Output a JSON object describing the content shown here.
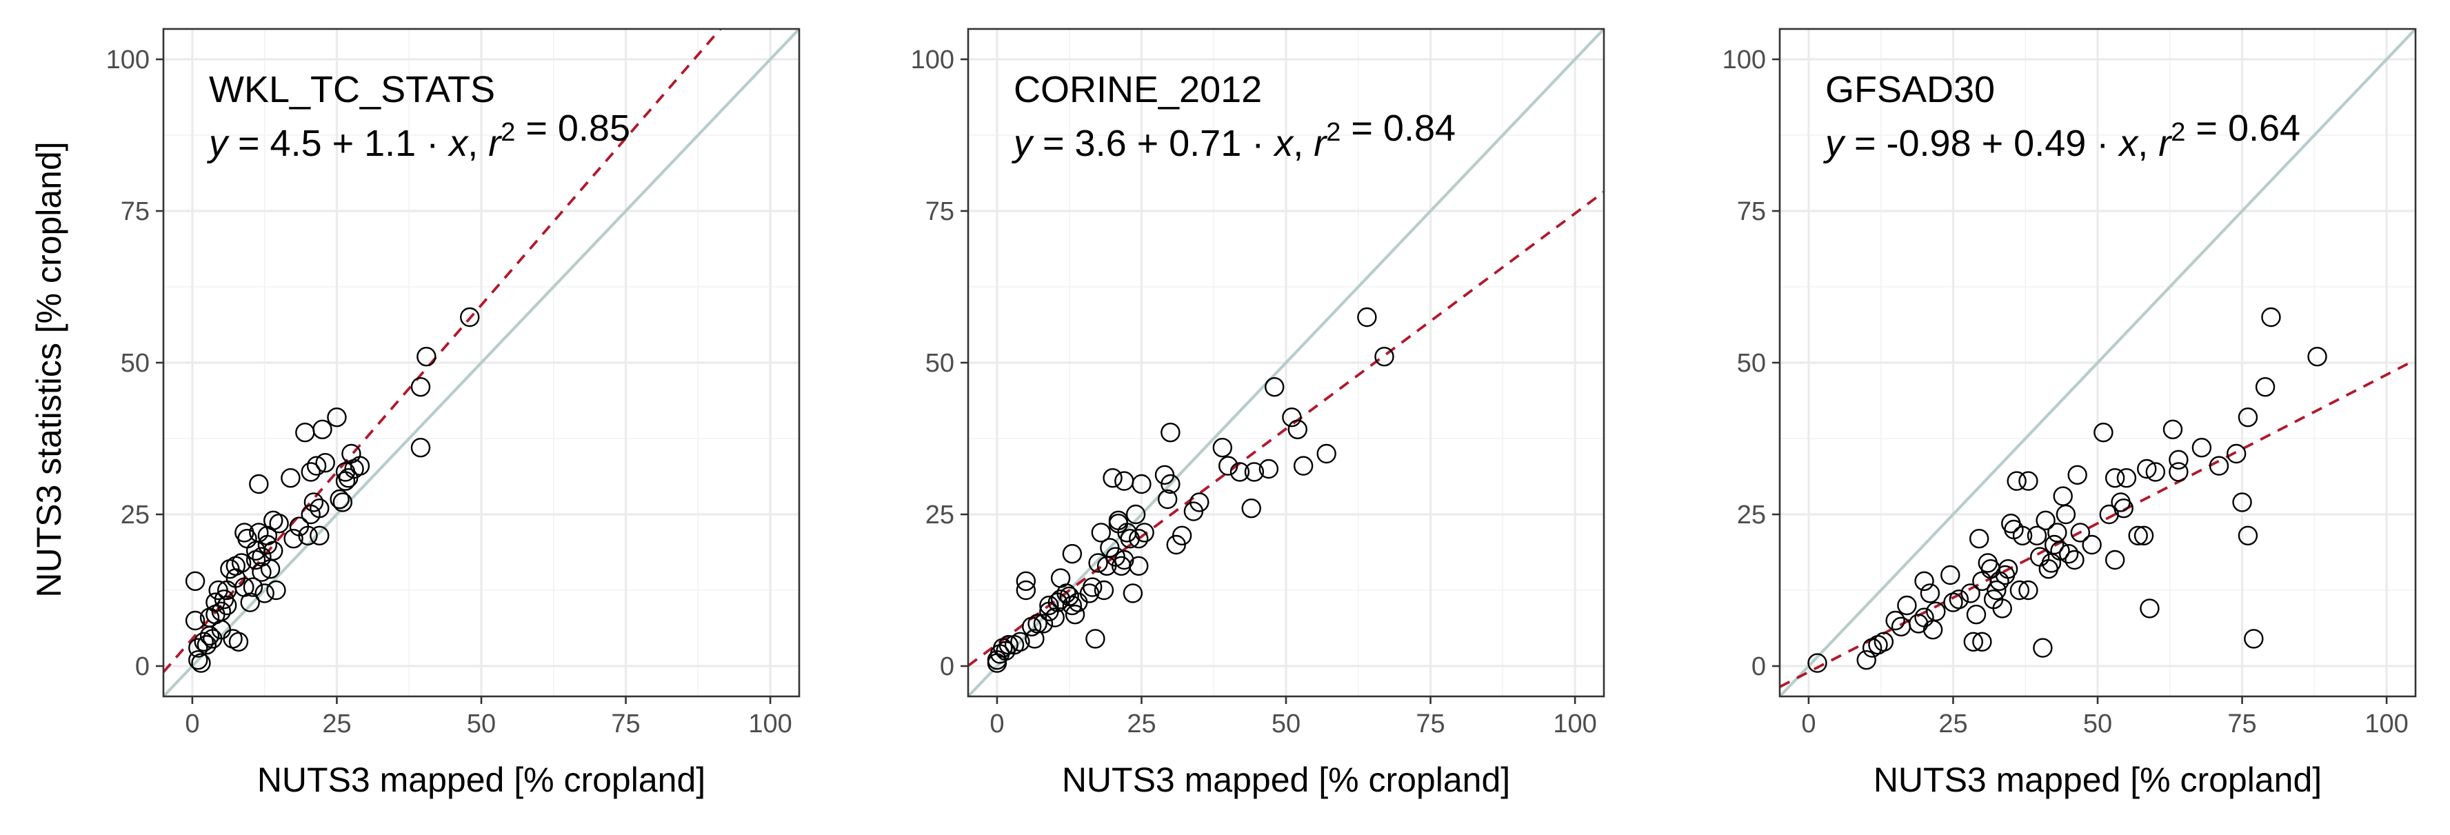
{
  "figure": {
    "ylabel": "NUTS3 statistics [% cropland]",
    "xlabel": "NUTS3 mapped [% cropland]"
  },
  "chart_data": [
    {
      "type": "scatter",
      "title": "WKL_TC_STATS",
      "equation": {
        "intercept": "4.5",
        "slope": "1.1",
        "r2": "0.85"
      },
      "fit": {
        "intercept": 4.5,
        "slope": 1.1,
        "color": "#b2182b",
        "style": "dashed"
      },
      "identity_line": {
        "color": "#b7cdcb"
      },
      "xlabel": "NUTS3 mapped [% cropland]",
      "ylabel": "NUTS3 statistics [% cropland]",
      "xlim": [
        -5,
        105
      ],
      "ylim": [
        -5,
        105
      ],
      "xticks": [
        0,
        25,
        50,
        75,
        100
      ],
      "yticks": [
        0,
        25,
        50,
        75,
        100
      ],
      "points": [
        [
          0.5,
          14
        ],
        [
          0.5,
          7.5
        ],
        [
          1,
          3
        ],
        [
          1,
          1
        ],
        [
          1.5,
          0.5
        ],
        [
          2,
          4
        ],
        [
          2.5,
          3.5
        ],
        [
          3,
          5
        ],
        [
          3,
          8
        ],
        [
          3.5,
          4.5
        ],
        [
          4,
          10.5
        ],
        [
          4,
          8.5
        ],
        [
          4.5,
          12.5
        ],
        [
          5,
          9
        ],
        [
          5,
          6
        ],
        [
          5.5,
          11
        ],
        [
          6,
          12.5
        ],
        [
          6,
          10
        ],
        [
          6.5,
          16
        ],
        [
          7,
          4.5
        ],
        [
          7.5,
          16.5
        ],
        [
          7.5,
          14.5
        ],
        [
          8,
          4
        ],
        [
          8.5,
          17
        ],
        [
          9,
          22
        ],
        [
          9,
          13
        ],
        [
          9.5,
          21
        ],
        [
          10,
          10.5
        ],
        [
          10.5,
          13
        ],
        [
          11,
          17.5
        ],
        [
          11,
          19
        ],
        [
          11.5,
          30
        ],
        [
          11.5,
          22
        ],
        [
          12,
          15.5
        ],
        [
          12,
          18
        ],
        [
          12.5,
          12
        ],
        [
          13,
          21.5
        ],
        [
          13,
          20
        ],
        [
          13.5,
          16
        ],
        [
          14,
          19
        ],
        [
          14,
          24
        ],
        [
          14.5,
          12.5
        ],
        [
          15,
          23.5
        ],
        [
          17,
          31
        ],
        [
          17.5,
          21
        ],
        [
          18.5,
          23
        ],
        [
          19.5,
          38.5
        ],
        [
          20,
          21.5
        ],
        [
          20.5,
          25
        ],
        [
          20.5,
          32
        ],
        [
          21,
          27
        ],
        [
          21.5,
          33
        ],
        [
          22,
          21.5
        ],
        [
          22,
          26
        ],
        [
          22.5,
          39
        ],
        [
          23,
          33.5
        ],
        [
          25,
          41
        ],
        [
          25.5,
          27.5
        ],
        [
          26,
          27
        ],
        [
          26.5,
          30.5
        ],
        [
          26.5,
          32
        ],
        [
          27,
          31
        ],
        [
          27.5,
          35
        ],
        [
          28,
          32.5
        ],
        [
          29,
          33
        ],
        [
          39.5,
          36
        ],
        [
          39.5,
          46
        ],
        [
          40.5,
          51
        ],
        [
          48,
          57.5
        ]
      ]
    },
    {
      "type": "scatter",
      "title": "CORINE_2012",
      "equation": {
        "intercept": "3.6",
        "slope": "0.71",
        "r2": "0.84"
      },
      "fit": {
        "intercept": 3.6,
        "slope": 0.71,
        "color": "#b2182b",
        "style": "dashed"
      },
      "identity_line": {
        "color": "#b7cdcb"
      },
      "xlabel": "NUTS3 mapped [% cropland]",
      "ylabel": "",
      "xlim": [
        -5,
        105
      ],
      "ylim": [
        -5,
        105
      ],
      "xticks": [
        0,
        25,
        50,
        75,
        100
      ],
      "yticks": [
        0,
        25,
        50,
        75,
        100
      ],
      "points": [
        [
          0,
          0.5
        ],
        [
          0,
          1
        ],
        [
          0.5,
          2
        ],
        [
          1,
          3
        ],
        [
          1.5,
          2.5
        ],
        [
          2,
          3.5
        ],
        [
          3,
          3.5
        ],
        [
          4,
          4
        ],
        [
          5,
          14
        ],
        [
          5,
          12.5
        ],
        [
          6,
          6.5
        ],
        [
          6.5,
          4.5
        ],
        [
          7,
          7
        ],
        [
          8,
          7
        ],
        [
          9,
          9
        ],
        [
          9,
          10
        ],
        [
          10,
          8
        ],
        [
          10.5,
          10.5
        ],
        [
          11,
          11
        ],
        [
          11,
          14.5
        ],
        [
          12,
          12
        ],
        [
          12.5,
          11.5
        ],
        [
          13,
          18.5
        ],
        [
          13,
          10
        ],
        [
          13.5,
          8.5
        ],
        [
          14,
          10.5
        ],
        [
          16,
          12
        ],
        [
          16.5,
          13
        ],
        [
          17,
          4.5
        ],
        [
          17.5,
          17
        ],
        [
          18,
          22
        ],
        [
          18.5,
          12.5
        ],
        [
          19,
          16.5
        ],
        [
          19.5,
          19.5
        ],
        [
          20,
          31
        ],
        [
          20.5,
          18
        ],
        [
          21,
          23.5
        ],
        [
          21,
          24
        ],
        [
          21.5,
          16.5
        ],
        [
          22,
          17.5
        ],
        [
          22,
          30.5
        ],
        [
          22.5,
          22
        ],
        [
          23,
          21
        ],
        [
          23.5,
          12
        ],
        [
          24,
          25
        ],
        [
          24.5,
          21
        ],
        [
          24.5,
          16.5
        ],
        [
          25,
          30
        ],
        [
          25.5,
          22
        ],
        [
          29,
          31.5
        ],
        [
          29.5,
          27.5
        ],
        [
          30,
          30
        ],
        [
          30,
          38.5
        ],
        [
          31,
          20
        ],
        [
          32,
          21.5
        ],
        [
          34,
          25.5
        ],
        [
          35,
          27
        ],
        [
          39,
          36
        ],
        [
          40,
          33
        ],
        [
          42,
          32
        ],
        [
          44,
          26
        ],
        [
          44.5,
          32
        ],
        [
          47,
          32.5
        ],
        [
          48,
          46
        ],
        [
          51,
          41
        ],
        [
          52,
          39
        ],
        [
          53,
          33
        ],
        [
          57,
          35
        ],
        [
          64,
          57.5
        ],
        [
          67,
          51
        ]
      ]
    },
    {
      "type": "scatter",
      "title": "GFSAD30",
      "equation": {
        "intercept": "-0.98",
        "slope": "0.49",
        "r2": "0.64"
      },
      "fit": {
        "intercept": -0.98,
        "slope": 0.49,
        "color": "#b2182b",
        "style": "dashed"
      },
      "identity_line": {
        "color": "#b7cdcb"
      },
      "xlabel": "NUTS3 mapped [% cropland]",
      "ylabel": "",
      "xlim": [
        -5,
        105
      ],
      "ylim": [
        -5,
        105
      ],
      "xticks": [
        0,
        25,
        50,
        75,
        100
      ],
      "yticks": [
        0,
        25,
        50,
        75,
        100
      ],
      "points": [
        [
          1.5,
          0.5
        ],
        [
          10,
          1
        ],
        [
          11,
          3
        ],
        [
          12,
          3.5
        ],
        [
          13,
          4
        ],
        [
          15,
          7.5
        ],
        [
          16,
          6.5
        ],
        [
          17,
          10
        ],
        [
          19,
          7
        ],
        [
          20,
          8
        ],
        [
          20,
          14
        ],
        [
          21,
          12
        ],
        [
          21.5,
          6
        ],
        [
          22,
          9
        ],
        [
          24.5,
          15
        ],
        [
          25,
          10.5
        ],
        [
          26,
          11
        ],
        [
          28,
          12
        ],
        [
          28.5,
          4
        ],
        [
          29,
          8.5
        ],
        [
          29.5,
          21
        ],
        [
          30,
          14
        ],
        [
          30,
          4
        ],
        [
          31,
          17
        ],
        [
          31.5,
          16
        ],
        [
          32,
          11
        ],
        [
          32.5,
          12.5
        ],
        [
          33,
          14
        ],
        [
          33.5,
          9.5
        ],
        [
          34,
          15
        ],
        [
          34.5,
          16
        ],
        [
          35,
          23.5
        ],
        [
          35.5,
          22.5
        ],
        [
          36,
          30.5
        ],
        [
          36.5,
          12.5
        ],
        [
          37,
          21.5
        ],
        [
          38,
          30.5
        ],
        [
          38,
          12.5
        ],
        [
          39.5,
          21.5
        ],
        [
          40,
          18
        ],
        [
          40.5,
          3
        ],
        [
          41,
          24
        ],
        [
          41.5,
          16
        ],
        [
          42,
          17
        ],
        [
          42.5,
          20
        ],
        [
          43,
          22
        ],
        [
          43.5,
          19
        ],
        [
          44,
          28
        ],
        [
          44.5,
          25
        ],
        [
          45,
          18.5
        ],
        [
          46,
          17.5
        ],
        [
          46.5,
          31.5
        ],
        [
          47,
          22
        ],
        [
          49,
          20
        ],
        [
          51,
          38.5
        ],
        [
          52,
          25
        ],
        [
          53,
          31
        ],
        [
          53,
          17.5
        ],
        [
          54,
          27
        ],
        [
          54.5,
          26
        ],
        [
          55,
          31
        ],
        [
          57,
          21.5
        ],
        [
          58,
          21.5
        ],
        [
          58.5,
          32.5
        ],
        [
          59,
          9.5
        ],
        [
          60,
          32
        ],
        [
          63,
          39
        ],
        [
          64,
          34
        ],
        [
          64,
          32
        ],
        [
          68,
          36
        ],
        [
          71,
          33
        ],
        [
          74,
          35
        ],
        [
          75,
          27
        ],
        [
          76,
          21.5
        ],
        [
          76,
          41
        ],
        [
          77,
          4.5
        ],
        [
          79,
          46
        ],
        [
          80,
          57.5
        ],
        [
          88,
          51
        ]
      ]
    }
  ]
}
